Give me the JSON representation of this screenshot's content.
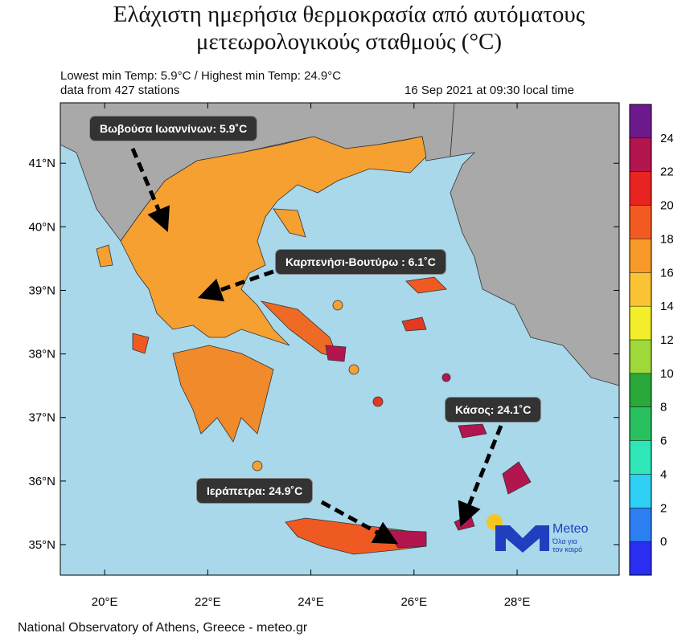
{
  "map": {
    "title_line1": "Ελάχιστη ημερήσια θερμοκρασία από αυτόματους",
    "title_line2": "μετεωρολογικούς σταθμούς (°C)",
    "subtitle_line1": "Lowest min Temp: 5.9°C / Highest min Temp: 24.9°C",
    "subtitle_line2": "data from 427 stations",
    "date": "16 Sep 2021 at 09:30 local time",
    "callouts": [
      "Βωβούσα Ιωαννίνων: 5.9˚C",
      "Καρπενήσι-Βουτύρω : 6.1˚C",
      "Κάσος: 24.1˚C",
      "Ιεράπετρα: 24.9˚C"
    ],
    "lat_range": [
      34.52,
      41.95
    ],
    "lon_range": [
      19.14,
      29.98
    ],
    "lat_ticks": [
      {
        "value": 41,
        "label": "41°N"
      },
      {
        "value": 40,
        "label": "40°N"
      },
      {
        "value": 39,
        "label": "39°N"
      },
      {
        "value": 38,
        "label": "38°N"
      },
      {
        "value": 37,
        "label": "37°N"
      },
      {
        "value": 36,
        "label": "36°N"
      },
      {
        "value": 35,
        "label": "35°N"
      }
    ],
    "lon_ticks": [
      {
        "value": 20,
        "label": "20°E"
      },
      {
        "value": 22,
        "label": "22°E"
      },
      {
        "value": 24,
        "label": "24°E"
      },
      {
        "value": 26,
        "label": "26°E"
      },
      {
        "value": 28,
        "label": "28°E"
      }
    ],
    "colorbar": {
      "range": [
        -2,
        26
      ],
      "ticks": [
        0,
        2,
        4,
        6,
        8,
        10,
        12,
        14,
        16,
        18,
        20,
        22,
        24
      ],
      "colors": [
        "#2a2ef0",
        "#2b7ff2",
        "#2fd0f4",
        "#2fe6b8",
        "#29c060",
        "#2aa83a",
        "#9fd83a",
        "#f3ee2a",
        "#fbc435",
        "#f89a2a",
        "#f35a22",
        "#e82421",
        "#b3154e",
        "#6e1a8f"
      ]
    },
    "footer": "National Observatory of Athens, Greece - meteo.gr",
    "logo": {
      "name": "Meteo",
      "tagline1": "Όλα για",
      "tagline2": "τον καιρό"
    }
  }
}
